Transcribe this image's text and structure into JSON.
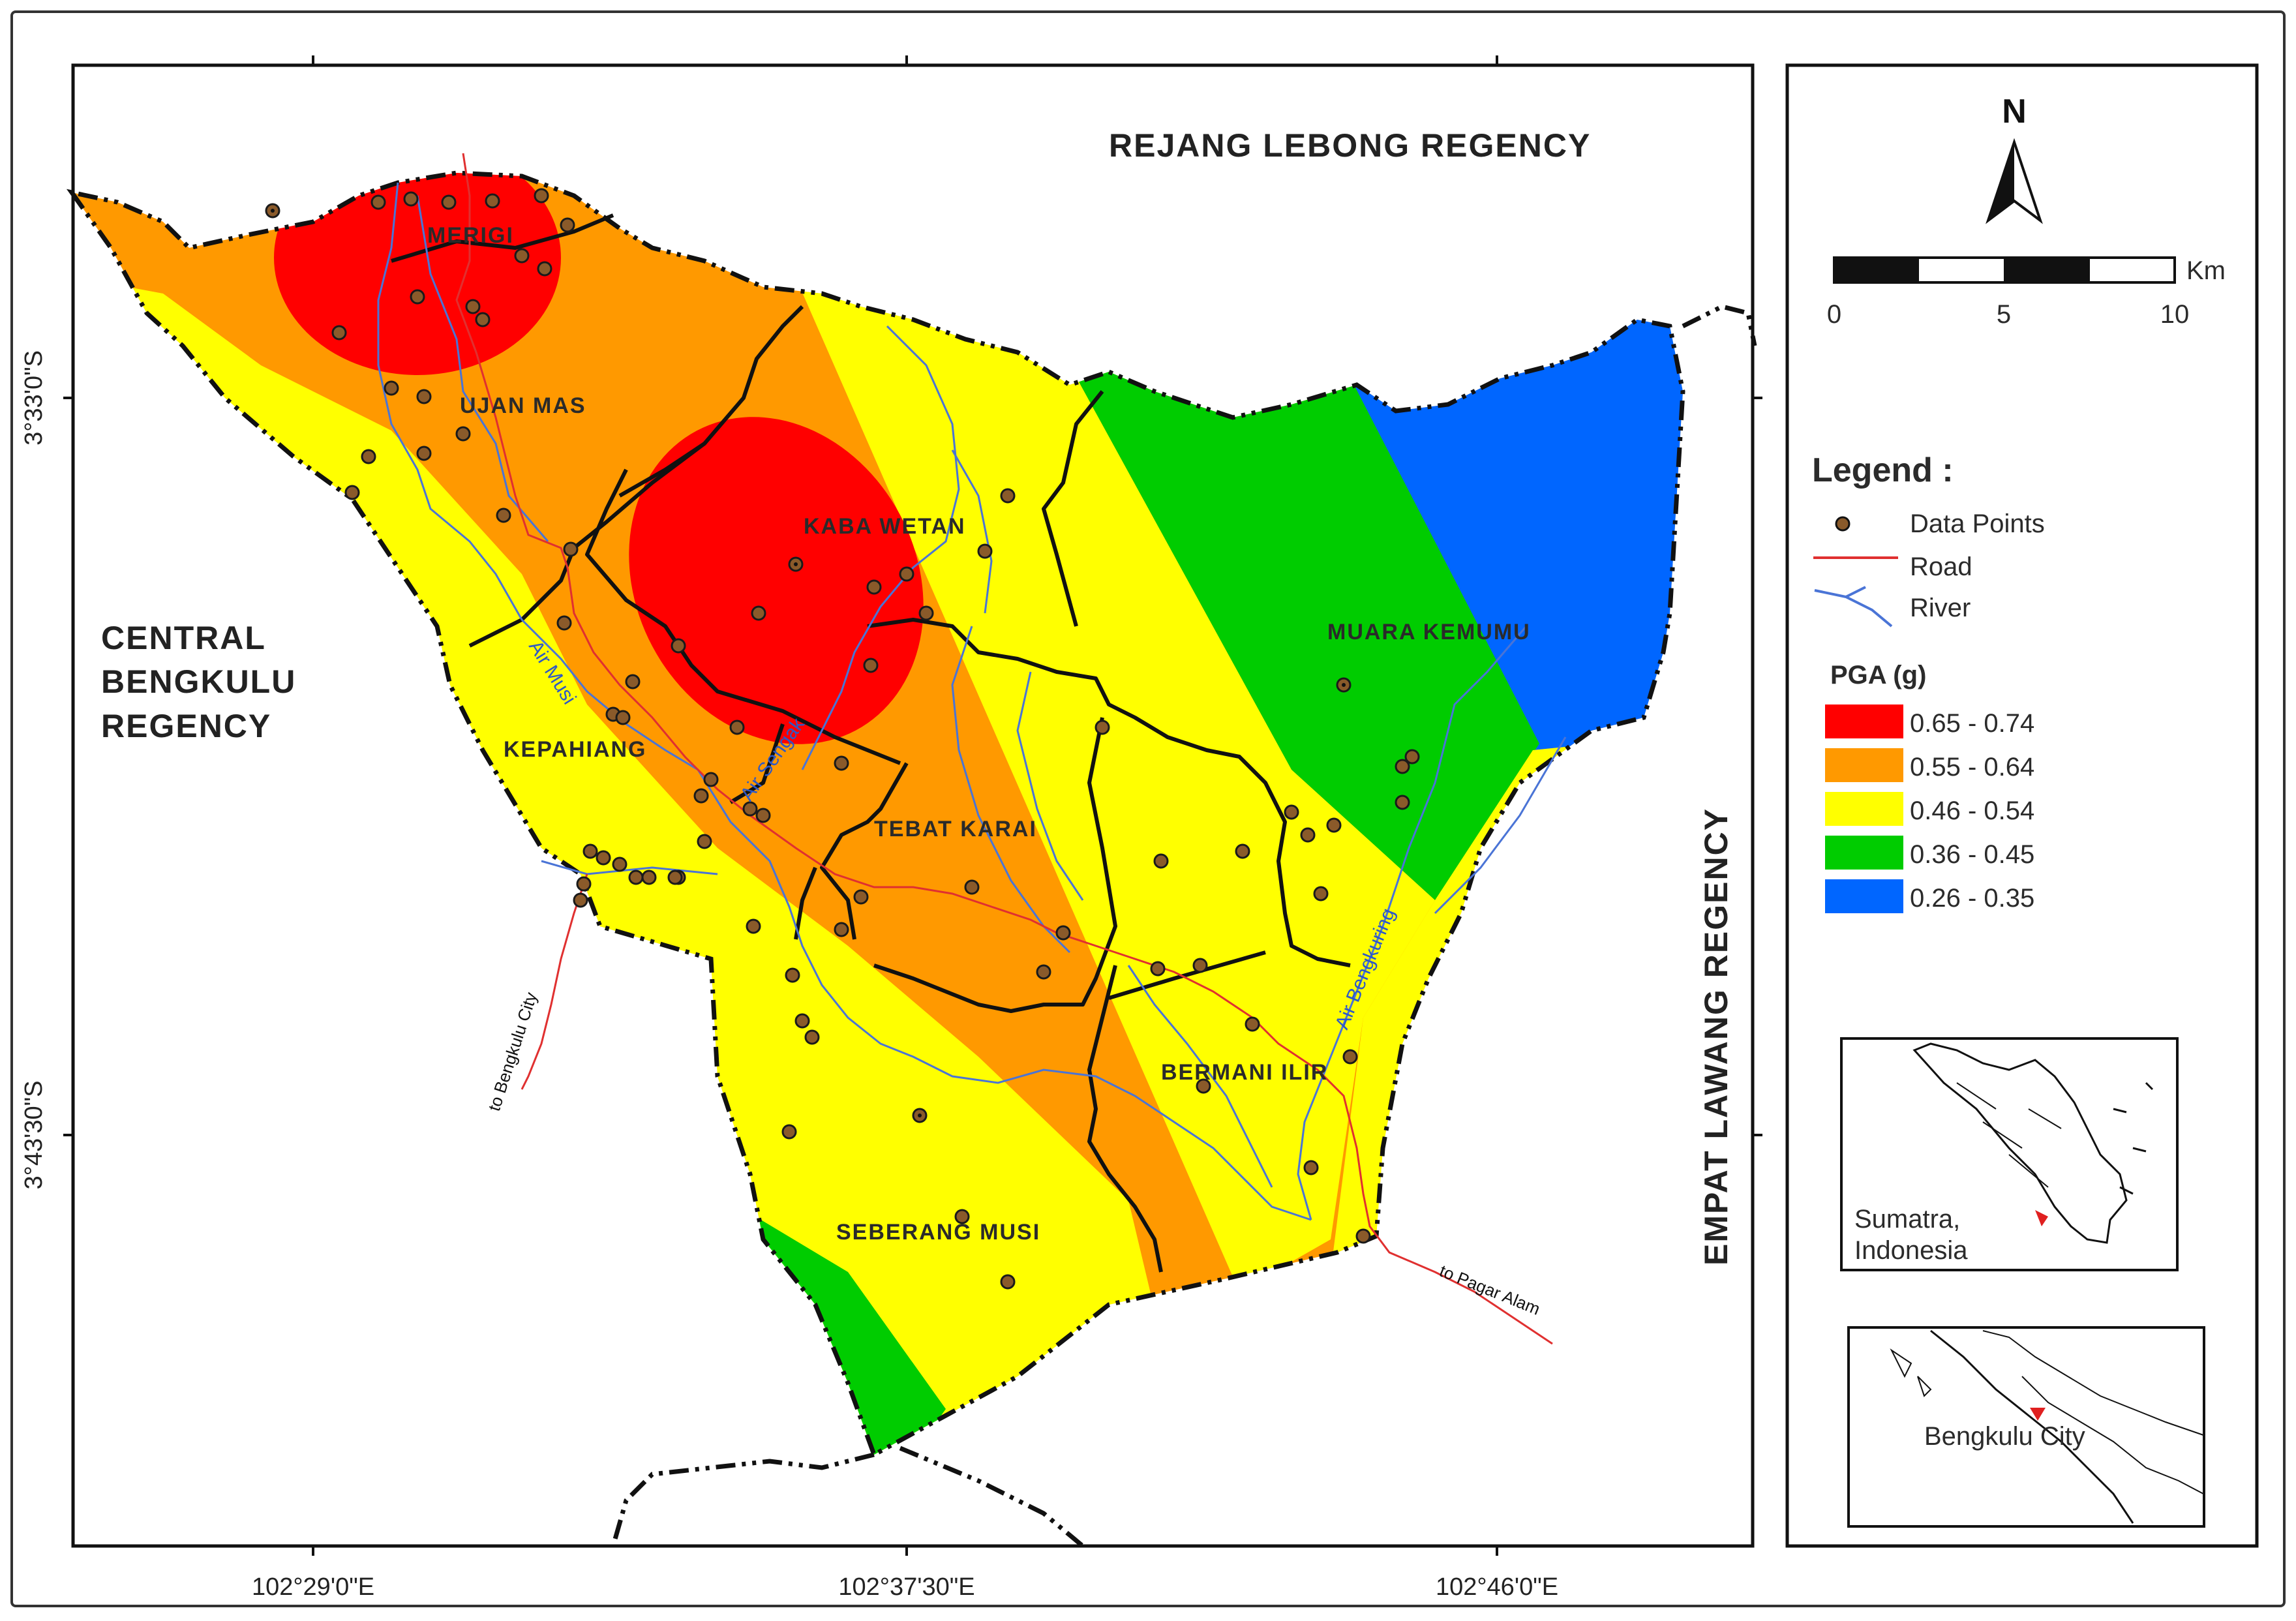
{
  "regions": {
    "north": "REJANG LEBONG REGENCY",
    "west": [
      "CENTRAL",
      "BENGKULU",
      "REGENCY"
    ],
    "east": "EMPAT LAWANG REGENCY"
  },
  "districts": [
    "MERIGI",
    "UJAN MAS",
    "KABA WETAN",
    "MUARA KEMUMU",
    "KEPAHIANG",
    "TEBAT KARAI",
    "BERMANI ILIR",
    "SEBERANG MUSI"
  ],
  "rivers": [
    "Air Musi",
    "Air Sengak",
    "Air Bengkuring"
  ],
  "roads": [
    "to Bengkulu City",
    "to Pagar Alam"
  ],
  "coords": {
    "lon": [
      "102°29'0\"E",
      "102°37'30\"E",
      "102°46'0\"E"
    ],
    "lat": [
      "3°33'0\"S",
      "3°43'30\"S"
    ]
  },
  "north_arrow": "N",
  "scale": {
    "ticks": [
      "0",
      "5",
      "10"
    ],
    "unit": "Km"
  },
  "legend": {
    "title": "Legend :",
    "symbols": [
      "Data Points",
      "Road",
      "River"
    ],
    "pga_title": "PGA (g)",
    "classes": [
      {
        "label": "0.65 - 0.74",
        "color": "#ff0000"
      },
      {
        "label": "0.55 - 0.64",
        "color": "#ff9900"
      },
      {
        "label": "0.46 - 0.54",
        "color": "#ffff00"
      },
      {
        "label": "0.36 - 0.45",
        "color": "#00cc00"
      },
      {
        "label": "0.26 - 0.35",
        "color": "#0066ff"
      }
    ]
  },
  "insets": {
    "sumatra": [
      "Sumatra,",
      "Indonesia"
    ],
    "bengkulu": "Bengkulu City"
  }
}
